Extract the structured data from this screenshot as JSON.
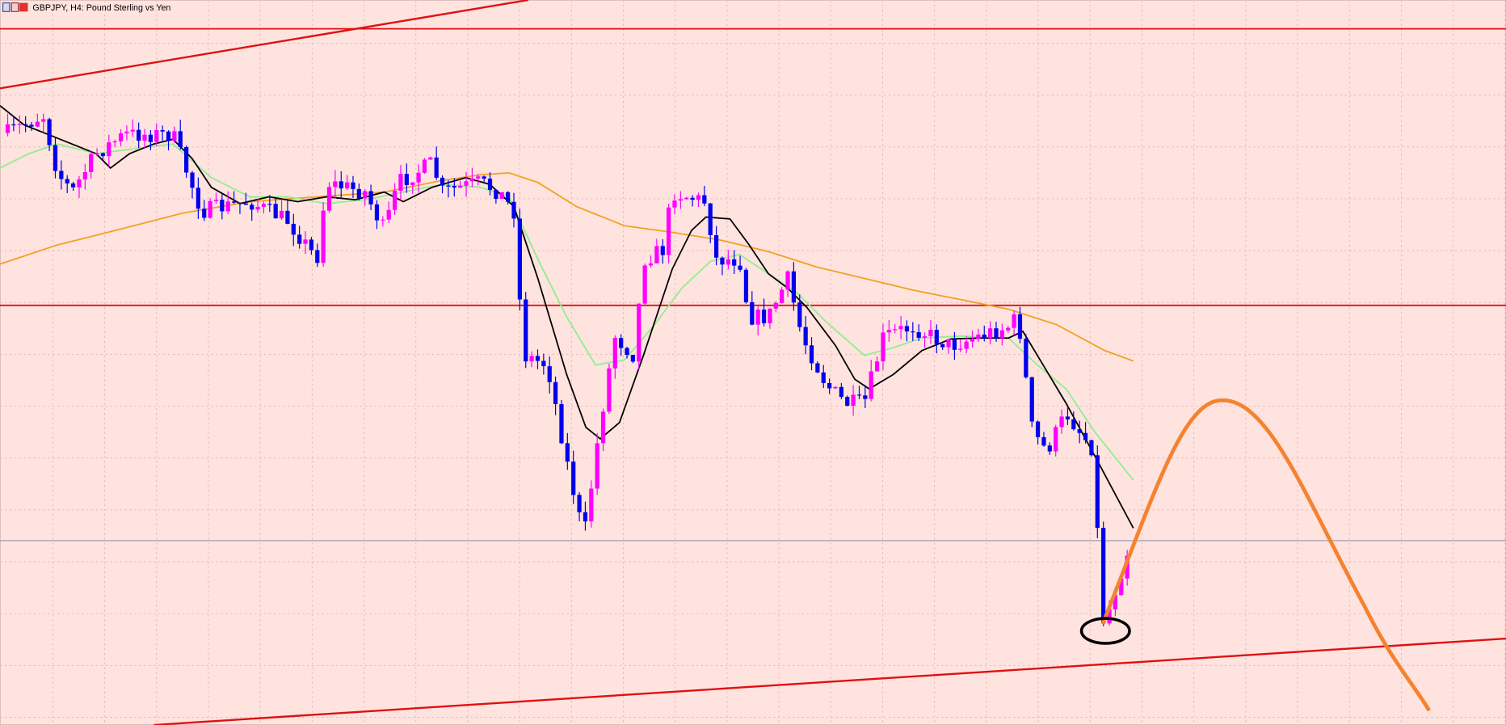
{
  "window": {
    "title": "GBPJPY, H4:  Pound Sterling vs Yen"
  }
}
